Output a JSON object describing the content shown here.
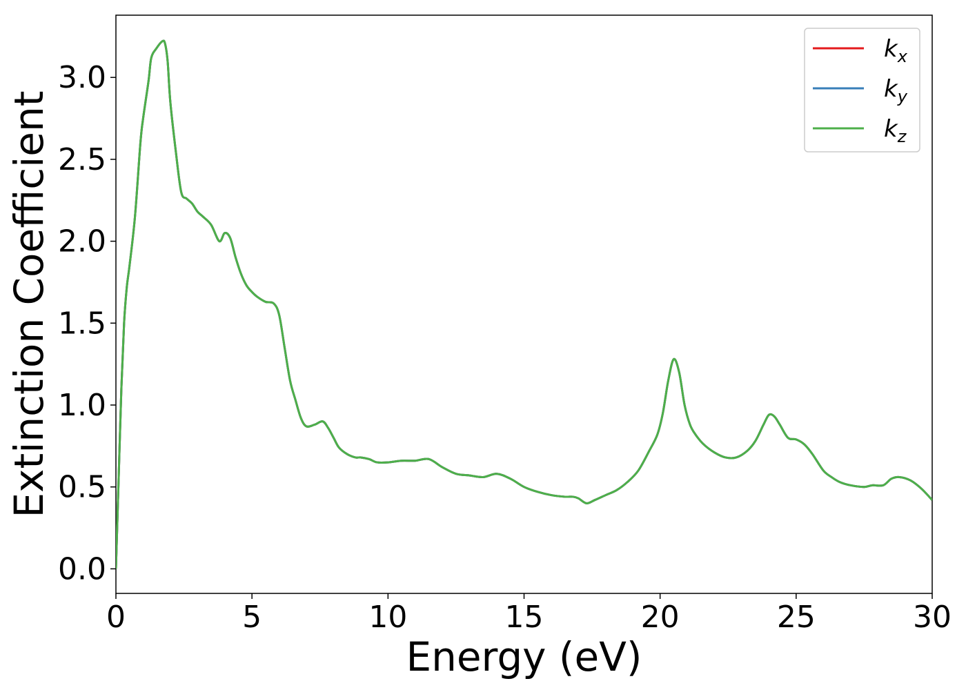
{
  "chart_data": {
    "type": "line",
    "title": "",
    "xlabel": "Energy (eV)",
    "ylabel": "Extinction Coefficient",
    "xlim": [
      0,
      30
    ],
    "ylim": [
      -0.15,
      3.38
    ],
    "xticks": [
      0,
      5,
      10,
      15,
      20,
      25,
      30
    ],
    "xtick_labels": [
      "0",
      "5",
      "10",
      "15",
      "20",
      "25",
      "30"
    ],
    "yticks": [
      0.0,
      0.5,
      1.0,
      1.5,
      2.0,
      2.5,
      3.0
    ],
    "ytick_labels": [
      "0.0",
      "0.5",
      "1.0",
      "1.5",
      "2.0",
      "2.5",
      "3.0"
    ],
    "grid": false,
    "legend": {
      "position": "top-right",
      "entries": [
        {
          "base": "k",
          "sub": "x",
          "color": "#e41a1c"
        },
        {
          "base": "k",
          "sub": "y",
          "color": "#377eb8"
        },
        {
          "base": "k",
          "sub": "z",
          "color": "#4daf4a"
        }
      ]
    },
    "x": [
      0,
      0.1,
      0.2,
      0.3,
      0.4,
      0.5,
      0.7,
      0.9,
      1.0,
      1.2,
      1.3,
      1.5,
      1.7,
      1.8,
      1.9,
      2.0,
      2.2,
      2.4,
      2.6,
      2.8,
      3.0,
      3.2,
      3.5,
      3.8,
      4.0,
      4.2,
      4.4,
      4.6,
      4.8,
      5.0,
      5.2,
      5.5,
      5.8,
      6.0,
      6.2,
      6.4,
      6.6,
      6.8,
      7.0,
      7.3,
      7.6,
      7.8,
      8.0,
      8.2,
      8.5,
      8.8,
      9.0,
      9.3,
      9.6,
      10.0,
      10.5,
      11.0,
      11.5,
      12.0,
      12.5,
      13.0,
      13.5,
      14.0,
      14.5,
      15.0,
      15.5,
      16.0,
      16.5,
      16.8,
      17.0,
      17.3,
      17.6,
      18.0,
      18.4,
      18.8,
      19.2,
      19.6,
      19.9,
      20.1,
      20.3,
      20.5,
      20.7,
      20.9,
      21.1,
      21.3,
      21.6,
      22.0,
      22.4,
      22.8,
      23.2,
      23.5,
      23.8,
      24.0,
      24.2,
      24.4,
      24.7,
      25.0,
      25.3,
      25.6,
      26.0,
      26.3,
      26.6,
      27.0,
      27.5,
      27.8,
      28.2,
      28.5,
      28.8,
      29.2,
      29.6,
      30.0
    ],
    "series": [
      {
        "name": "k_x",
        "values": [
          0.0,
          0.55,
          1.1,
          1.5,
          1.72,
          1.85,
          2.15,
          2.6,
          2.75,
          2.98,
          3.12,
          3.18,
          3.22,
          3.21,
          3.1,
          2.85,
          2.55,
          2.3,
          2.26,
          2.23,
          2.18,
          2.15,
          2.1,
          2.0,
          2.05,
          2.02,
          1.9,
          1.8,
          1.73,
          1.69,
          1.66,
          1.63,
          1.62,
          1.55,
          1.35,
          1.15,
          1.03,
          0.92,
          0.87,
          0.88,
          0.9,
          0.86,
          0.8,
          0.74,
          0.7,
          0.68,
          0.68,
          0.67,
          0.65,
          0.65,
          0.66,
          0.66,
          0.67,
          0.62,
          0.58,
          0.57,
          0.56,
          0.58,
          0.55,
          0.5,
          0.47,
          0.45,
          0.44,
          0.44,
          0.43,
          0.4,
          0.42,
          0.45,
          0.48,
          0.53,
          0.6,
          0.72,
          0.82,
          0.95,
          1.15,
          1.28,
          1.2,
          1.0,
          0.88,
          0.82,
          0.76,
          0.71,
          0.68,
          0.68,
          0.72,
          0.78,
          0.88,
          0.94,
          0.93,
          0.88,
          0.8,
          0.79,
          0.76,
          0.7,
          0.6,
          0.56,
          0.53,
          0.51,
          0.5,
          0.51,
          0.51,
          0.55,
          0.56,
          0.54,
          0.49,
          0.42
        ]
      },
      {
        "name": "k_y",
        "values": [
          0.0,
          0.55,
          1.1,
          1.5,
          1.72,
          1.85,
          2.15,
          2.6,
          2.75,
          2.98,
          3.12,
          3.18,
          3.22,
          3.21,
          3.1,
          2.85,
          2.55,
          2.3,
          2.26,
          2.23,
          2.18,
          2.15,
          2.1,
          2.0,
          2.05,
          2.02,
          1.9,
          1.8,
          1.73,
          1.69,
          1.66,
          1.63,
          1.62,
          1.55,
          1.35,
          1.15,
          1.03,
          0.92,
          0.87,
          0.88,
          0.9,
          0.86,
          0.8,
          0.74,
          0.7,
          0.68,
          0.68,
          0.67,
          0.65,
          0.65,
          0.66,
          0.66,
          0.67,
          0.62,
          0.58,
          0.57,
          0.56,
          0.58,
          0.55,
          0.5,
          0.47,
          0.45,
          0.44,
          0.44,
          0.43,
          0.4,
          0.42,
          0.45,
          0.48,
          0.53,
          0.6,
          0.72,
          0.82,
          0.95,
          1.15,
          1.28,
          1.2,
          1.0,
          0.88,
          0.82,
          0.76,
          0.71,
          0.68,
          0.68,
          0.72,
          0.78,
          0.88,
          0.94,
          0.93,
          0.88,
          0.8,
          0.79,
          0.76,
          0.7,
          0.6,
          0.56,
          0.53,
          0.51,
          0.5,
          0.51,
          0.51,
          0.55,
          0.56,
          0.54,
          0.49,
          0.42
        ]
      },
      {
        "name": "k_z",
        "values": [
          0.0,
          0.55,
          1.1,
          1.5,
          1.72,
          1.85,
          2.15,
          2.6,
          2.75,
          2.98,
          3.12,
          3.18,
          3.22,
          3.21,
          3.1,
          2.85,
          2.55,
          2.3,
          2.26,
          2.23,
          2.18,
          2.15,
          2.1,
          2.0,
          2.05,
          2.02,
          1.9,
          1.8,
          1.73,
          1.69,
          1.66,
          1.63,
          1.62,
          1.55,
          1.35,
          1.15,
          1.03,
          0.92,
          0.87,
          0.88,
          0.9,
          0.86,
          0.8,
          0.74,
          0.7,
          0.68,
          0.68,
          0.67,
          0.65,
          0.65,
          0.66,
          0.66,
          0.67,
          0.62,
          0.58,
          0.57,
          0.56,
          0.58,
          0.55,
          0.5,
          0.47,
          0.45,
          0.44,
          0.44,
          0.43,
          0.4,
          0.42,
          0.45,
          0.48,
          0.53,
          0.6,
          0.72,
          0.82,
          0.95,
          1.15,
          1.28,
          1.2,
          1.0,
          0.88,
          0.82,
          0.76,
          0.71,
          0.68,
          0.68,
          0.72,
          0.78,
          0.88,
          0.94,
          0.93,
          0.88,
          0.8,
          0.79,
          0.76,
          0.7,
          0.6,
          0.56,
          0.53,
          0.51,
          0.5,
          0.51,
          0.51,
          0.55,
          0.56,
          0.54,
          0.49,
          0.42
        ]
      }
    ]
  }
}
